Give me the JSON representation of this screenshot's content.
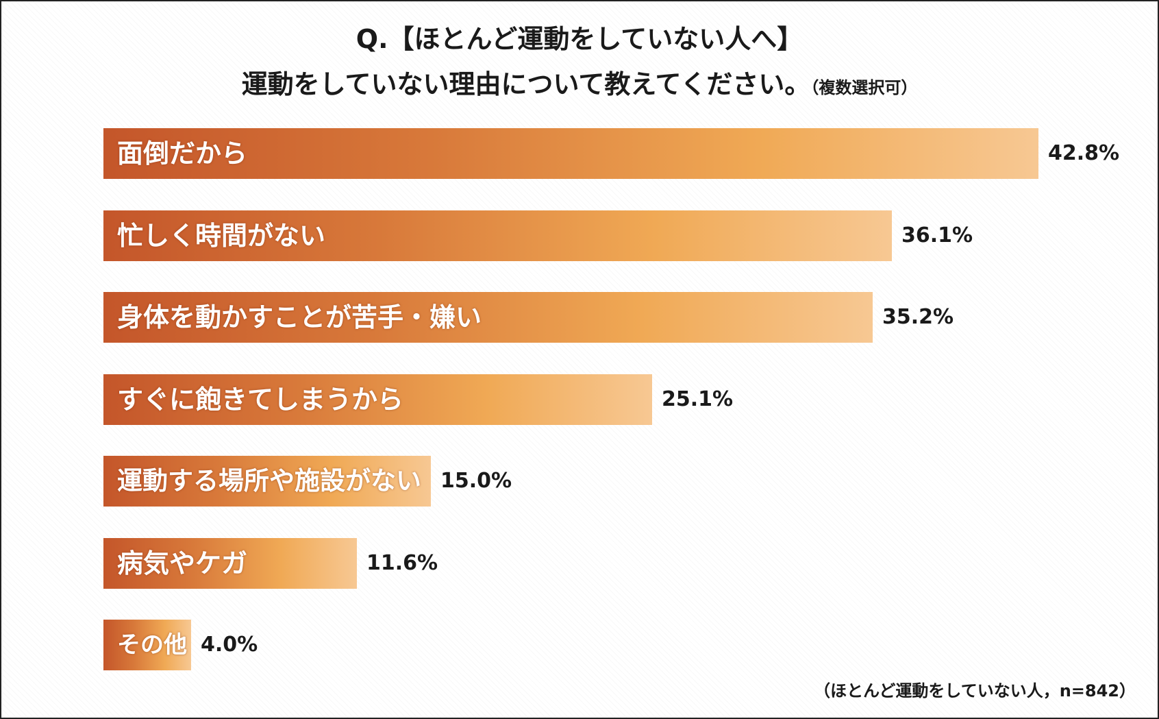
{
  "chart_data": {
    "type": "bar",
    "orientation": "horizontal",
    "title": "Q.【ほとんど運動をしていない人へ】",
    "subtitle": "運動をしていない理由について教えてください。",
    "subtitle_note": "（複数選択可）",
    "categories": [
      "面倒だから",
      "忙しく時間がない",
      "身体を動かすことが苦手・嫌い",
      "すぐに飽きてしまうから",
      "運動する場所や施設がない",
      "病気やケガ",
      "その他"
    ],
    "values": [
      42.8,
      36.1,
      35.2,
      25.1,
      15.0,
      11.6,
      4.0
    ],
    "value_labels": [
      "42.8%",
      "36.1%",
      "35.2%",
      "25.1%",
      "15.0%",
      "11.6%",
      "4.0%"
    ],
    "unit": "%",
    "xlabel": "",
    "ylabel": "",
    "xlim": [
      0,
      42.8
    ],
    "grid": false,
    "legend": "none",
    "bar_gradient": [
      "#c4562a",
      "#f0a955",
      "#f7c893"
    ],
    "note": "（ほとんど運動をしていない人，n=842）"
  }
}
